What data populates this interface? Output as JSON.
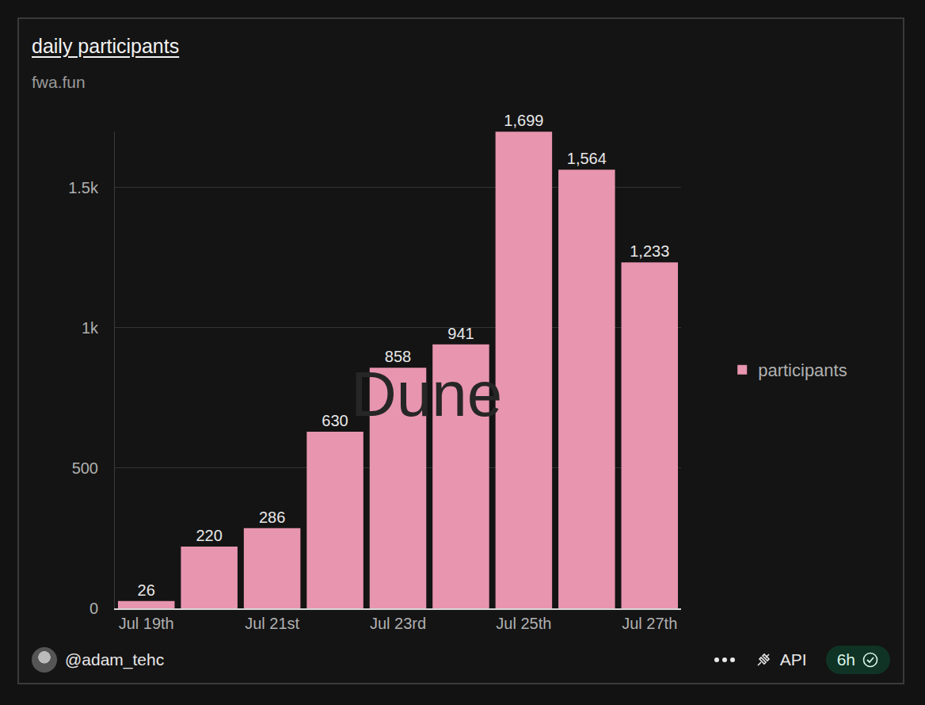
{
  "chart_data": {
    "type": "bar",
    "title": "daily participants",
    "subtitle": "fwa.fun",
    "categories": [
      "Jul 19th",
      null,
      "Jul 21st",
      null,
      "Jul 23rd",
      null,
      "Jul 25th",
      null,
      "Jul 27th"
    ],
    "series": [
      {
        "name": "participants",
        "color": "#e895b0",
        "values": [
          26,
          220,
          286,
          630,
          858,
          941,
          1699,
          1564,
          1233
        ],
        "value_labels": [
          "26",
          "220",
          "286",
          "630",
          "858",
          "941",
          "1,699",
          "1,564",
          "1,233"
        ]
      }
    ],
    "ylim": [
      0,
      1700
    ],
    "yticks": [
      0,
      500,
      {
        "value": 1000,
        "label": "1k"
      },
      {
        "value": 1500,
        "label": "1.5k"
      }
    ],
    "grid": true,
    "legend": "right",
    "data_labels": true,
    "watermark": "Dune"
  },
  "footer": {
    "author": "@adam_tehc",
    "api": "API",
    "refresh": "6h"
  }
}
